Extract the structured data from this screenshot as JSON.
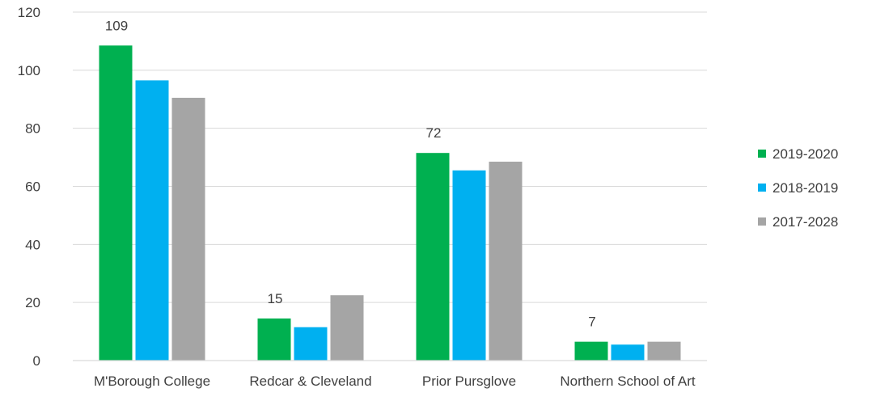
{
  "chart_data": {
    "type": "bar",
    "title": "",
    "xlabel": "",
    "ylabel": "",
    "categories": [
      "M'Borough College",
      "Redcar & Cleveland",
      "Prior Pursglove",
      "Northern School of Art"
    ],
    "series": [
      {
        "name": "2019-2020",
        "color": "#00B050",
        "values": [
          108.5,
          14.5,
          71.5,
          6.5
        ],
        "data_labels": [
          "109",
          "15",
          "72",
          "7"
        ]
      },
      {
        "name": "2018-2019",
        "color": "#00B0F0",
        "values": [
          96.5,
          11.5,
          65.5,
          5.5
        ]
      },
      {
        "name": "2017-2028",
        "color": "#A5A5A5",
        "values": [
          90.5,
          22.5,
          68.5,
          6.5
        ]
      }
    ],
    "ylim": [
      0,
      120
    ],
    "yticks": [
      "0",
      "20",
      "40",
      "60",
      "80",
      "100",
      "120"
    ],
    "ytick_values": [
      0,
      20,
      40,
      60,
      80,
      100,
      120
    ],
    "grid": true,
    "legend_position": "right"
  }
}
